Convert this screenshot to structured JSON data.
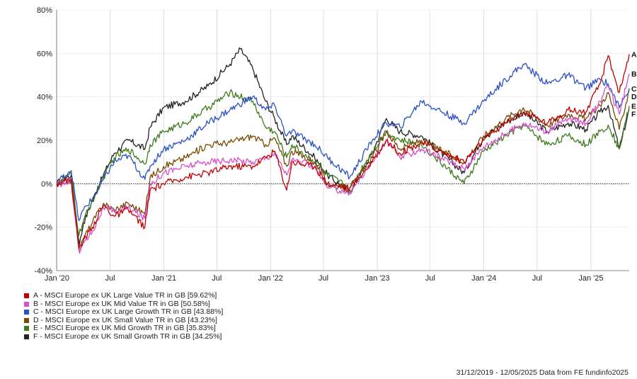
{
  "chart_data": {
    "type": "line",
    "title": "",
    "xlabel": "",
    "ylabel": "",
    "x_ticks": [
      "Jan '20",
      "Jul",
      "Jan '21",
      "Jul",
      "Jan '22",
      "Jul",
      "Jan '23",
      "Jul",
      "Jan '24",
      "Jul",
      "Jan '25"
    ],
    "x_tick_dates": [
      "2020-01-01",
      "2020-07-01",
      "2021-01-01",
      "2021-07-01",
      "2022-01-01",
      "2022-07-01",
      "2023-01-01",
      "2023-07-01",
      "2024-01-01",
      "2024-07-01",
      "2025-01-01"
    ],
    "x_range": [
      "2019-12-31",
      "2025-05-12"
    ],
    "y_ticks": [
      "80%",
      "60%",
      "40%",
      "20%",
      "0%",
      "-20%",
      "-40%"
    ],
    "y_tick_values": [
      80,
      60,
      40,
      20,
      0,
      -20,
      -40
    ],
    "ylim": [
      -40,
      80
    ],
    "grid": true,
    "zero_line": "dotted",
    "legend_position": "bottom-left",
    "series": [
      {
        "key": "A",
        "name": "A - MSCI Europe ex UK Large Value TR in GB [59.62%]",
        "color": "#c00000",
        "points": [
          [
            "2019-12-31",
            0
          ],
          [
            "2020-01-20",
            1
          ],
          [
            "2020-02-19",
            2
          ],
          [
            "2020-03-16",
            -30
          ],
          [
            "2020-04-01",
            -26
          ],
          [
            "2020-05-01",
            -20
          ],
          [
            "2020-06-08",
            -10
          ],
          [
            "2020-07-15",
            -15
          ],
          [
            "2020-09-01",
            -12
          ],
          [
            "2020-10-28",
            -20
          ],
          [
            "2020-11-15",
            -3
          ],
          [
            "2020-12-31",
            0
          ],
          [
            "2021-03-15",
            3
          ],
          [
            "2021-06-01",
            5
          ],
          [
            "2021-08-15",
            8
          ],
          [
            "2021-11-01",
            8
          ],
          [
            "2021-12-15",
            12
          ],
          [
            "2022-01-15",
            15
          ],
          [
            "2022-02-25",
            -3
          ],
          [
            "2022-03-15",
            10
          ],
          [
            "2022-06-01",
            8
          ],
          [
            "2022-07-15",
            0
          ],
          [
            "2022-09-29",
            -2
          ],
          [
            "2022-12-15",
            10
          ],
          [
            "2023-02-01",
            20
          ],
          [
            "2023-03-20",
            14
          ],
          [
            "2023-06-01",
            19
          ],
          [
            "2023-10-25",
            10
          ],
          [
            "2023-12-31",
            20
          ],
          [
            "2024-03-15",
            28
          ],
          [
            "2024-05-15",
            33
          ],
          [
            "2024-08-05",
            28
          ],
          [
            "2024-10-15",
            34
          ],
          [
            "2024-12-15",
            33
          ],
          [
            "2025-02-01",
            46
          ],
          [
            "2025-03-01",
            59
          ],
          [
            "2025-04-08",
            42
          ],
          [
            "2025-05-12",
            59.62
          ]
        ]
      },
      {
        "key": "B",
        "name": "B - MSCI Europe ex UK Mid Value TR in GB [50.58%]",
        "color": "#d94fcf",
        "points": [
          [
            "2019-12-31",
            0
          ],
          [
            "2020-01-20",
            0
          ],
          [
            "2020-02-19",
            1
          ],
          [
            "2020-03-18",
            -32
          ],
          [
            "2020-04-01",
            -27
          ],
          [
            "2020-05-01",
            -22
          ],
          [
            "2020-06-08",
            -11
          ],
          [
            "2020-07-15",
            -13
          ],
          [
            "2020-09-01",
            -11
          ],
          [
            "2020-10-28",
            -16
          ],
          [
            "2020-11-15",
            0
          ],
          [
            "2020-12-31",
            5
          ],
          [
            "2021-03-15",
            8
          ],
          [
            "2021-06-01",
            10
          ],
          [
            "2021-08-15",
            11
          ],
          [
            "2021-11-01",
            10
          ],
          [
            "2021-12-15",
            12
          ],
          [
            "2022-01-15",
            14
          ],
          [
            "2022-02-25",
            4
          ],
          [
            "2022-03-15",
            11
          ],
          [
            "2022-06-01",
            8
          ],
          [
            "2022-07-15",
            -2
          ],
          [
            "2022-09-29",
            -4
          ],
          [
            "2022-12-15",
            10
          ],
          [
            "2023-02-01",
            20
          ],
          [
            "2023-03-20",
            12
          ],
          [
            "2023-06-01",
            16
          ],
          [
            "2023-10-25",
            7
          ],
          [
            "2023-12-31",
            17
          ],
          [
            "2024-03-15",
            23
          ],
          [
            "2024-05-15",
            28
          ],
          [
            "2024-08-05",
            24
          ],
          [
            "2024-10-15",
            30
          ],
          [
            "2024-12-15",
            28
          ],
          [
            "2025-02-01",
            38
          ],
          [
            "2025-03-01",
            45
          ],
          [
            "2025-04-08",
            32
          ],
          [
            "2025-05-12",
            50.58
          ]
        ]
      },
      {
        "key": "C",
        "name": "C - MSCI Europe ex UK Large Growth TR in GB [43.88%]",
        "color": "#2b50c8",
        "points": [
          [
            "2019-12-31",
            0
          ],
          [
            "2020-01-20",
            3
          ],
          [
            "2020-02-19",
            6
          ],
          [
            "2020-03-16",
            -17
          ],
          [
            "2020-04-01",
            -12
          ],
          [
            "2020-05-01",
            -7
          ],
          [
            "2020-06-08",
            2
          ],
          [
            "2020-07-15",
            10
          ],
          [
            "2020-09-01",
            13
          ],
          [
            "2020-10-28",
            2
          ],
          [
            "2020-11-15",
            8
          ],
          [
            "2020-12-31",
            16
          ],
          [
            "2021-03-15",
            20
          ],
          [
            "2021-06-01",
            28
          ],
          [
            "2021-08-15",
            34
          ],
          [
            "2021-11-01",
            40
          ],
          [
            "2021-12-15",
            34
          ],
          [
            "2022-01-15",
            36
          ],
          [
            "2022-02-25",
            22
          ],
          [
            "2022-03-15",
            24
          ],
          [
            "2022-06-01",
            18
          ],
          [
            "2022-07-15",
            12
          ],
          [
            "2022-09-29",
            3
          ],
          [
            "2022-12-15",
            20
          ],
          [
            "2023-02-01",
            28
          ],
          [
            "2023-03-20",
            26
          ],
          [
            "2023-06-01",
            38
          ],
          [
            "2023-10-25",
            28
          ],
          [
            "2023-12-31",
            38
          ],
          [
            "2024-03-15",
            48
          ],
          [
            "2024-05-15",
            55
          ],
          [
            "2024-08-05",
            46
          ],
          [
            "2024-10-15",
            50
          ],
          [
            "2024-12-15",
            44
          ],
          [
            "2025-02-01",
            48
          ],
          [
            "2025-03-01",
            46
          ],
          [
            "2025-04-08",
            35
          ],
          [
            "2025-05-12",
            43.88
          ]
        ]
      },
      {
        "key": "D",
        "name": "D - MSCI Europe ex UK Small Value TR in GB [43.23%]",
        "color": "#7a4a00",
        "points": [
          [
            "2019-12-31",
            0
          ],
          [
            "2020-01-20",
            0
          ],
          [
            "2020-02-19",
            2
          ],
          [
            "2020-03-18",
            -31
          ],
          [
            "2020-04-01",
            -25
          ],
          [
            "2020-05-01",
            -18
          ],
          [
            "2020-06-08",
            -9
          ],
          [
            "2020-07-15",
            -12
          ],
          [
            "2020-09-01",
            -9
          ],
          [
            "2020-10-28",
            -14
          ],
          [
            "2020-11-15",
            3
          ],
          [
            "2020-12-31",
            8
          ],
          [
            "2021-03-15",
            12
          ],
          [
            "2021-06-01",
            18
          ],
          [
            "2021-08-15",
            19
          ],
          [
            "2021-11-01",
            22
          ],
          [
            "2021-12-15",
            18
          ],
          [
            "2022-01-15",
            21
          ],
          [
            "2022-02-25",
            8
          ],
          [
            "2022-03-15",
            15
          ],
          [
            "2022-06-01",
            10
          ],
          [
            "2022-07-15",
            0
          ],
          [
            "2022-09-29",
            -3
          ],
          [
            "2022-12-15",
            12
          ],
          [
            "2023-02-01",
            24
          ],
          [
            "2023-03-20",
            16
          ],
          [
            "2023-06-01",
            20
          ],
          [
            "2023-10-25",
            10
          ],
          [
            "2023-12-31",
            22
          ],
          [
            "2024-03-15",
            30
          ],
          [
            "2024-05-15",
            35
          ],
          [
            "2024-08-05",
            27
          ],
          [
            "2024-10-15",
            32
          ],
          [
            "2024-12-15",
            30
          ],
          [
            "2025-02-01",
            36
          ],
          [
            "2025-03-01",
            42
          ],
          [
            "2025-04-08",
            25
          ],
          [
            "2025-05-12",
            43.23
          ]
        ]
      },
      {
        "key": "E",
        "name": "E - MSCI Europe ex UK Mid Growth TR in GB [35.83%]",
        "color": "#3e7a1c",
        "points": [
          [
            "2019-12-31",
            0
          ],
          [
            "2020-01-20",
            2
          ],
          [
            "2020-02-19",
            5
          ],
          [
            "2020-03-16",
            -24
          ],
          [
            "2020-04-01",
            -17
          ],
          [
            "2020-05-01",
            -8
          ],
          [
            "2020-06-08",
            3
          ],
          [
            "2020-07-15",
            12
          ],
          [
            "2020-09-01",
            16
          ],
          [
            "2020-10-28",
            9
          ],
          [
            "2020-11-15",
            18
          ],
          [
            "2020-12-31",
            24
          ],
          [
            "2021-03-15",
            28
          ],
          [
            "2021-06-01",
            35
          ],
          [
            "2021-08-15",
            42
          ],
          [
            "2021-11-01",
            38
          ],
          [
            "2021-12-15",
            26
          ],
          [
            "2022-01-15",
            24
          ],
          [
            "2022-02-25",
            12
          ],
          [
            "2022-03-15",
            18
          ],
          [
            "2022-06-01",
            10
          ],
          [
            "2022-07-15",
            4
          ],
          [
            "2022-09-29",
            -2
          ],
          [
            "2022-12-15",
            15
          ],
          [
            "2023-02-01",
            24
          ],
          [
            "2023-03-20",
            20
          ],
          [
            "2023-06-01",
            18
          ],
          [
            "2023-10-25",
            0
          ],
          [
            "2023-12-31",
            15
          ],
          [
            "2024-03-15",
            22
          ],
          [
            "2024-05-15",
            27
          ],
          [
            "2024-08-05",
            18
          ],
          [
            "2024-10-15",
            22
          ],
          [
            "2024-12-15",
            18
          ],
          [
            "2025-02-01",
            24
          ],
          [
            "2025-03-01",
            27
          ],
          [
            "2025-04-08",
            16
          ],
          [
            "2025-05-12",
            35.83
          ]
        ]
      },
      {
        "key": "F",
        "name": "F - MSCI Europe ex UK Small Growth TR in GB [34.25%]",
        "color": "#222222",
        "points": [
          [
            "2019-12-31",
            0
          ],
          [
            "2020-01-20",
            2
          ],
          [
            "2020-02-19",
            4
          ],
          [
            "2020-03-18",
            -28
          ],
          [
            "2020-04-01",
            -18
          ],
          [
            "2020-05-01",
            -8
          ],
          [
            "2020-06-08",
            4
          ],
          [
            "2020-07-15",
            14
          ],
          [
            "2020-09-01",
            20
          ],
          [
            "2020-10-28",
            16
          ],
          [
            "2020-11-15",
            26
          ],
          [
            "2020-12-31",
            35
          ],
          [
            "2021-03-15",
            38
          ],
          [
            "2021-06-01",
            45
          ],
          [
            "2021-08-15",
            55
          ],
          [
            "2021-09-20",
            62
          ],
          [
            "2021-11-01",
            53
          ],
          [
            "2021-12-15",
            38
          ],
          [
            "2022-01-15",
            30
          ],
          [
            "2022-02-25",
            18
          ],
          [
            "2022-03-15",
            22
          ],
          [
            "2022-06-01",
            12
          ],
          [
            "2022-07-15",
            4
          ],
          [
            "2022-09-29",
            -4
          ],
          [
            "2022-12-15",
            14
          ],
          [
            "2023-02-01",
            30
          ],
          [
            "2023-03-20",
            24
          ],
          [
            "2023-06-01",
            22
          ],
          [
            "2023-10-25",
            5
          ],
          [
            "2023-12-31",
            22
          ],
          [
            "2024-03-15",
            28
          ],
          [
            "2024-05-15",
            33
          ],
          [
            "2024-08-05",
            24
          ],
          [
            "2024-10-15",
            28
          ],
          [
            "2024-12-15",
            25
          ],
          [
            "2025-02-01",
            33
          ],
          [
            "2025-03-01",
            36
          ],
          [
            "2025-04-08",
            16
          ],
          [
            "2025-05-12",
            34.25
          ]
        ]
      }
    ]
  },
  "footer": {
    "date_range": "31/12/2019 - 12/05/2025 Data from FE fundinfo2025"
  }
}
